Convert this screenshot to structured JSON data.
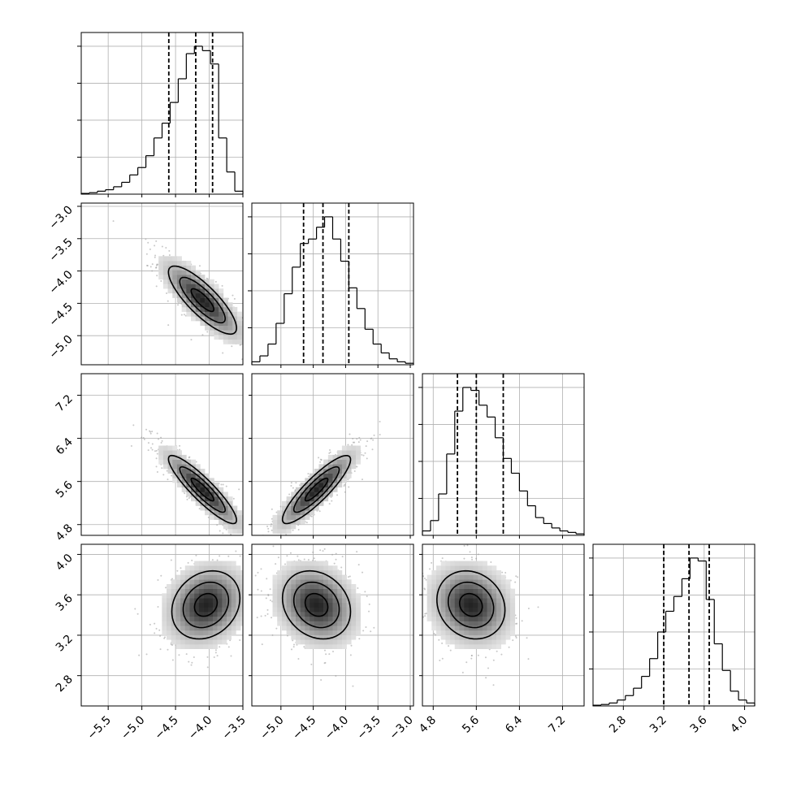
{
  "chart_data": {
    "type": "corner",
    "n_params": 4,
    "params": [
      {
        "index": 0,
        "range": [
          -5.9,
          -3.5
        ],
        "ticks": [
          -5.5,
          -5.0,
          -4.5,
          -4.0,
          -3.5
        ],
        "tick_labels": [
          "−5.5",
          "−5.0",
          "−4.5",
          "−4.0",
          "−3.5"
        ],
        "median": -4.2,
        "q16": -4.6,
        "q84": -3.95
      },
      {
        "index": 1,
        "range": [
          -5.45,
          -2.95
        ],
        "ticks": [
          -5.0,
          -4.5,
          -4.0,
          -3.5,
          -3.0
        ],
        "tick_labels": [
          "−5.0",
          "−4.5",
          "−4.0",
          "−3.5",
          "−3.0"
        ],
        "median": -4.35,
        "q16": -4.65,
        "q84": -3.95
      },
      {
        "index": 2,
        "range": [
          4.6,
          7.6
        ],
        "ticks": [
          4.8,
          5.6,
          6.4,
          7.2
        ],
        "tick_labels": [
          "4.8",
          "5.6",
          "6.4",
          "7.2"
        ],
        "median": 5.6,
        "q16": 5.25,
        "q84": 6.1
      },
      {
        "index": 3,
        "range": [
          2.5,
          4.1
        ],
        "ticks": [
          2.8,
          3.2,
          3.6,
          4.0
        ],
        "tick_labels": [
          "2.8",
          "3.2",
          "3.6",
          "4.0"
        ],
        "median": 3.45,
        "q16": 3.2,
        "q84": 3.65
      }
    ],
    "histograms": [
      {
        "param": 0,
        "counts": [
          0.005,
          0.01,
          0.02,
          0.03,
          0.05,
          0.08,
          0.13,
          0.18,
          0.26,
          0.38,
          0.48,
          0.62,
          0.78,
          0.95,
          1.0,
          0.97,
          0.88,
          0.38,
          0.15,
          0.02
        ]
      },
      {
        "param": 1,
        "counts": [
          0.02,
          0.06,
          0.14,
          0.28,
          0.48,
          0.66,
          0.82,
          0.85,
          0.93,
          1.0,
          0.85,
          0.7,
          0.52,
          0.38,
          0.24,
          0.14,
          0.08,
          0.04,
          0.02,
          0.01
        ]
      },
      {
        "param": 2,
        "counts": [
          0.03,
          0.1,
          0.28,
          0.55,
          0.84,
          1.0,
          0.98,
          0.88,
          0.8,
          0.66,
          0.52,
          0.42,
          0.3,
          0.2,
          0.12,
          0.08,
          0.05,
          0.03,
          0.02,
          0.01
        ]
      },
      {
        "param": 3,
        "counts": [
          0.005,
          0.01,
          0.02,
          0.04,
          0.07,
          0.12,
          0.2,
          0.32,
          0.5,
          0.64,
          0.74,
          0.86,
          1.0,
          0.98,
          0.72,
          0.42,
          0.24,
          0.1,
          0.04,
          0.02
        ]
      }
    ],
    "pairs": [
      {
        "x": 0,
        "y": 1,
        "center": [
          -4.1,
          -4.45
        ],
        "corr": -0.82
      },
      {
        "x": 0,
        "y": 2,
        "center": [
          -4.1,
          5.45
        ],
        "corr": -0.9
      },
      {
        "x": 1,
        "y": 2,
        "center": [
          -4.45,
          5.45
        ],
        "corr": 0.88
      },
      {
        "x": 0,
        "y": 3,
        "center": [
          -4.05,
          3.5
        ],
        "corr": 0.2
      },
      {
        "x": 1,
        "y": 3,
        "center": [
          -4.45,
          3.5
        ],
        "corr": -0.2
      },
      {
        "x": 2,
        "y": 3,
        "center": [
          5.5,
          3.5
        ],
        "corr": -0.15
      }
    ]
  }
}
